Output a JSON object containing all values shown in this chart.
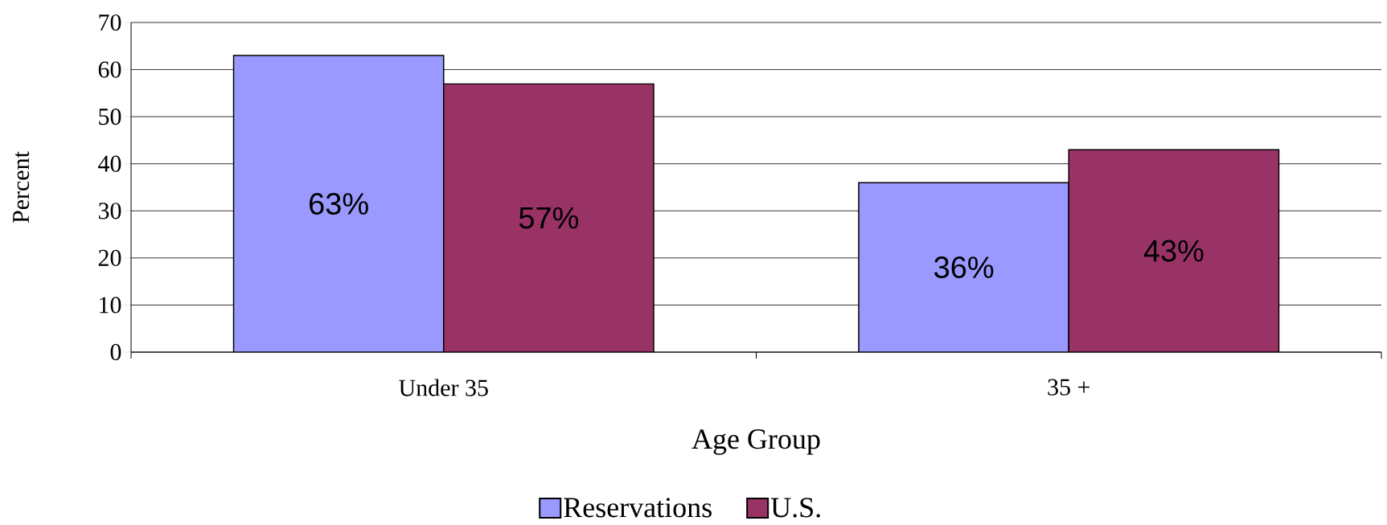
{
  "chart_data": {
    "type": "bar",
    "xlabel": "Age Group",
    "ylabel": "Percent",
    "categories": [
      "Under 35",
      "35 +"
    ],
    "series": [
      {
        "name": "Reservations",
        "color": "#9999ff",
        "values": [
          63,
          36
        ],
        "value_labels": [
          "63%",
          "36%"
        ]
      },
      {
        "name": "U.S.",
        "color": "#993366",
        "values": [
          57,
          43
        ],
        "value_labels": [
          "57%",
          "43%"
        ]
      }
    ],
    "ylim": [
      0,
      70
    ],
    "yticks": [
      0,
      10,
      20,
      30,
      40,
      50,
      60,
      70
    ],
    "grid": "y",
    "legend": "bottom"
  }
}
